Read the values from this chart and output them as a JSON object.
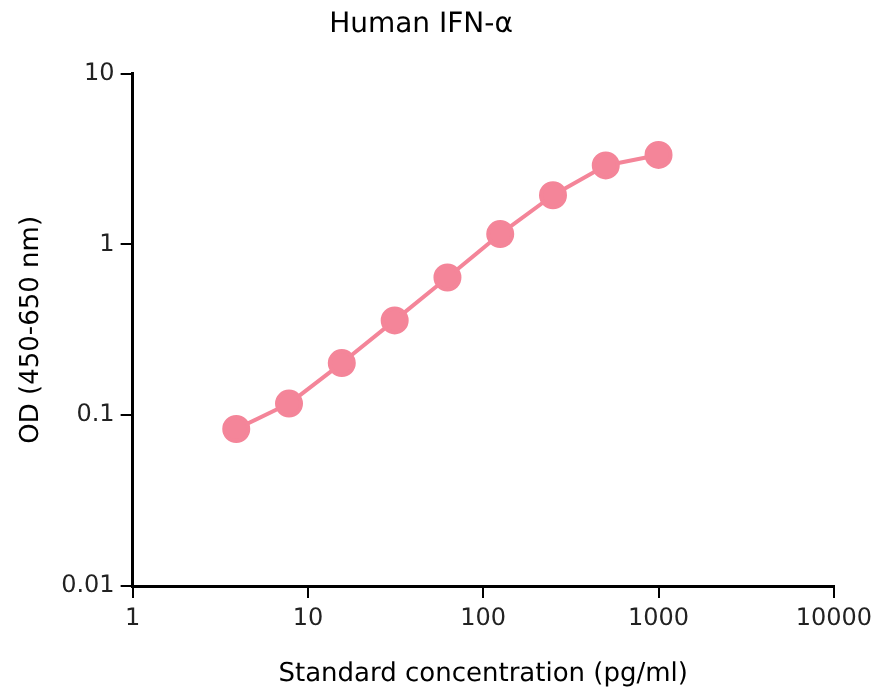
{
  "chart_data": {
    "type": "line",
    "title": "Human IFN-α",
    "xlabel": "Standard concentration (pg/ml)",
    "ylabel": "OD (450-650 nm)",
    "x": [
      3.9,
      7.8,
      15.6,
      31.25,
      62.5,
      125,
      250,
      500,
      1000
    ],
    "series": [
      {
        "color": "#f48599",
        "values": [
          0.083,
          0.117,
          0.202,
          0.359,
          0.64,
          1.15,
          1.94,
          2.9,
          3.34
        ]
      }
    ],
    "log": "xy",
    "xlim": [
      1,
      10000
    ],
    "xticks": [
      1,
      10,
      100,
      1000,
      10000
    ],
    "ylim": [
      0.01,
      10
    ],
    "yticks": [
      0.01,
      0.1,
      1,
      10
    ],
    "grid": false,
    "legend": false,
    "marker": "circle",
    "line_style": "solid"
  }
}
